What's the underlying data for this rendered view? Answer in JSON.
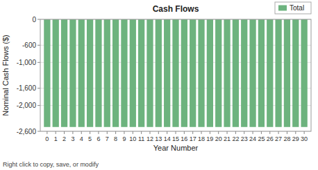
{
  "chart_data": {
    "type": "bar",
    "title": "Cash Flows",
    "x_label": "Year Number",
    "y_label": "Nominal Cash Flows ($)",
    "x": [
      0,
      1,
      2,
      3,
      4,
      5,
      6,
      7,
      8,
      9,
      10,
      11,
      12,
      13,
      14,
      15,
      16,
      17,
      18,
      19,
      20,
      21,
      22,
      23,
      24,
      25,
      26,
      27,
      28,
      29,
      30
    ],
    "series": [
      {
        "name": "Total",
        "color": "#6db37e",
        "values": [
          -2500,
          -2500,
          -2500,
          -2500,
          -2500,
          -2500,
          -2500,
          -2500,
          -2500,
          -2500,
          -2500,
          -2500,
          -2500,
          -2500,
          -2500,
          -2500,
          -2500,
          -2500,
          -2500,
          -2500,
          -2500,
          -2500,
          -2500,
          -2500,
          -2500,
          -2500,
          -2500,
          -2500,
          -2500,
          -2500,
          -2500
        ]
      }
    ],
    "xlim": [
      -0.8,
      30.8
    ],
    "xticks": [
      0,
      1,
      2,
      3,
      4,
      5,
      6,
      7,
      8,
      9,
      10,
      11,
      12,
      13,
      14,
      15,
      16,
      17,
      18,
      19,
      20,
      21,
      22,
      23,
      24,
      25,
      26,
      27,
      28,
      29,
      30
    ],
    "ylim": [
      -2600,
      0
    ],
    "yticks": [
      0,
      -600,
      {
        "value": -1000,
        "label": "-1,000"
      },
      {
        "value": -1600,
        "label": "-1,600"
      },
      {
        "value": -2000,
        "label": "-2,000"
      },
      {
        "value": -2600,
        "label": "-2,600"
      }
    ],
    "grid": true,
    "legend": "upper right",
    "footnote": "Right click to copy, save, or modify"
  }
}
